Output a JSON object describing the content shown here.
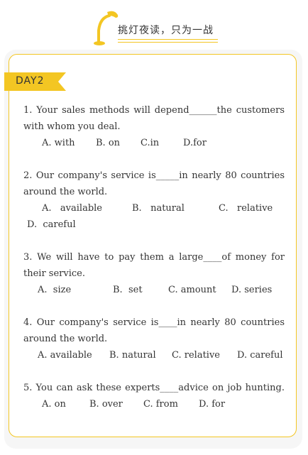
{
  "header": {
    "title": "挑灯夜读，只为一战",
    "accent_color": "#f3c623",
    "lamp_icon": "desk-lamp-icon"
  },
  "day_label": "DAY2",
  "questions": [
    {
      "lines": [
        "1. Your sales methods will depend______the customers",
        "with whom you deal."
      ],
      "options": [
        "A. with",
        "B. on",
        "C.in",
        "D.for"
      ]
    },
    {
      "lines": [
        "2. Our company's service is_____in nearly 80 countries",
        "around the world."
      ],
      "options": [
        "A.   available",
        "B.   natural",
        "C.   relative",
        "D.  careful"
      ]
    },
    {
      "lines": [
        "3. We will have to pay them a large____of money for",
        "their service."
      ],
      "options": [
        "A.  size",
        "B.  set",
        "C. amount",
        "D. series"
      ]
    },
    {
      "lines": [
        "4. Our company's service is____in nearly 80 countries",
        "around the world."
      ],
      "options": [
        "A. available",
        "B. natural",
        "C. relative",
        "D. careful"
      ]
    },
    {
      "lines": [
        "5. You can ask these experts____advice on job hunting."
      ],
      "options": [
        "A. on",
        "B. over",
        "C. from",
        "D. for"
      ]
    }
  ]
}
